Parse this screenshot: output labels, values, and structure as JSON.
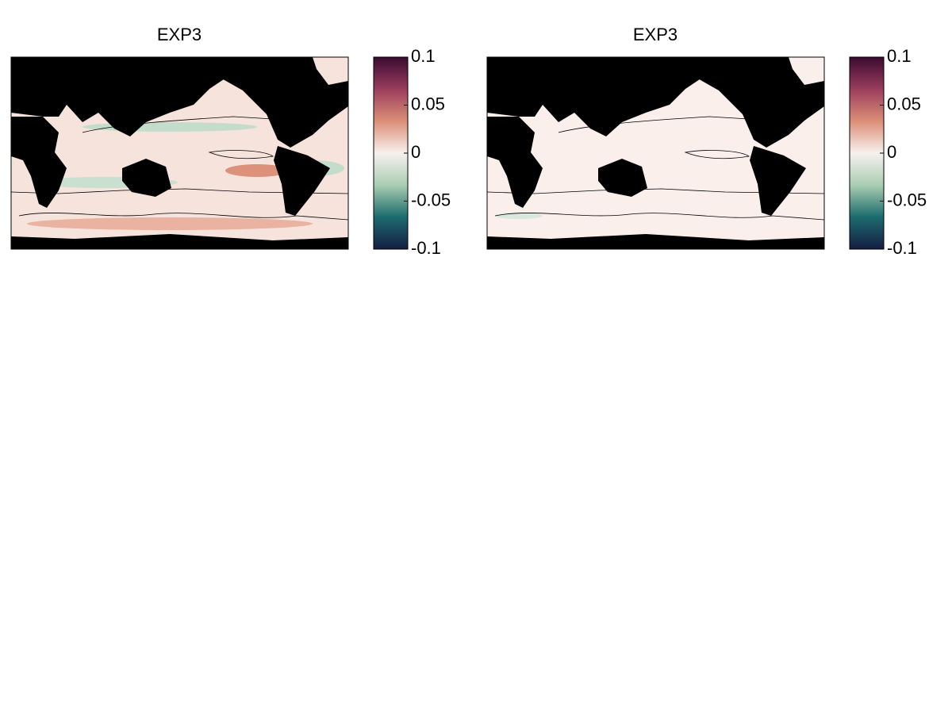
{
  "panels": [
    {
      "title": "EXP3",
      "colorbar": {
        "lim": [
          -0.1,
          0.1
        ],
        "ticks": [
          0.1,
          0.05,
          0,
          -0.05,
          -0.1
        ],
        "colormap": [
          "#151d44",
          "#1c6b6e",
          "#a9cdb2",
          "#f7f1ee",
          "#dc8e77",
          "#9a3d5c",
          "#3b0a31"
        ]
      }
    },
    {
      "title": "EXP3",
      "colorbar": {
        "lim": [
          -0.1,
          0.1
        ],
        "ticks": [
          0.1,
          0.05,
          0,
          -0.05,
          -0.1
        ],
        "colormap": [
          "#151d44",
          "#1c6b6e",
          "#a9cdb2",
          "#f7f1ee",
          "#dc8e77",
          "#9a3d5c",
          "#3b0a31"
        ]
      }
    }
  ]
}
